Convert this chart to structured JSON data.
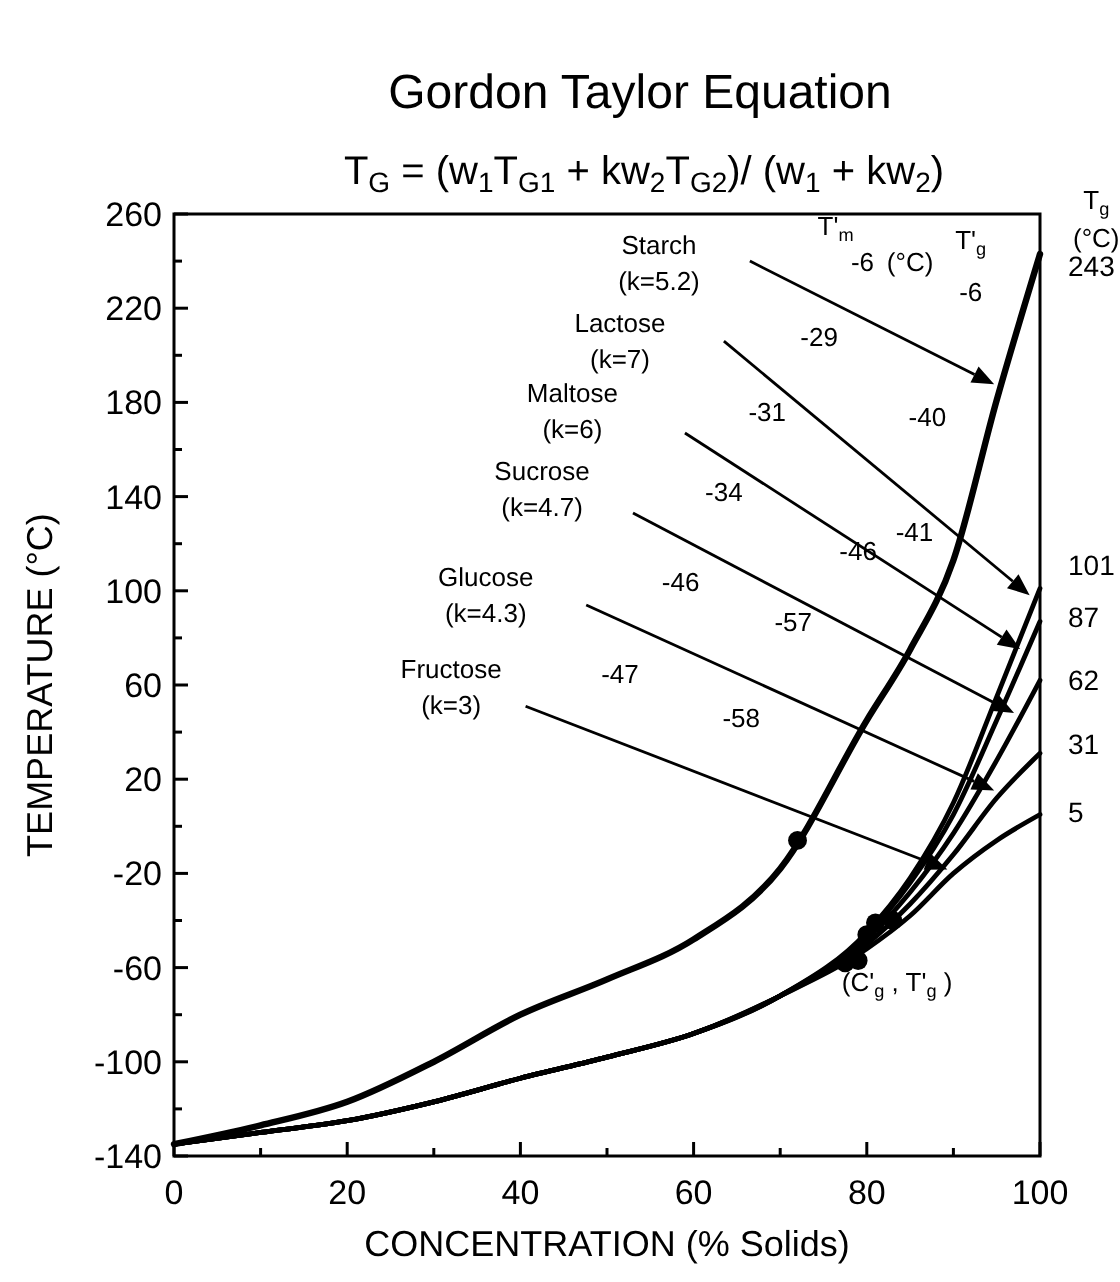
{
  "chart_data": {
    "type": "line",
    "title": "Gordon Taylor Equation",
    "subtitle": "T$_{G}$ = (w$_{1}$T$_{G1}$ + kw$_{2}$T$_{G2}$)/ (w$_{1}$ + kw$_{2}$)",
    "xlabel": "CONCENTRATION (% Solids)",
    "ylabel": "TEMPERATURE (°C)",
    "xlim": [
      0,
      100
    ],
    "ylim": [
      -140,
      260
    ],
    "xticks": [
      0,
      {
        "value": 10,
        "label": null
      },
      20,
      {
        "value": 30,
        "label": null
      },
      40,
      {
        "value": 50,
        "label": null
      },
      60,
      {
        "value": 70,
        "label": null
      },
      80,
      {
        "value": 90,
        "label": null
      },
      100
    ],
    "yticks": [
      -140,
      {
        "value": -120,
        "label": null
      },
      -100,
      {
        "value": -80,
        "label": null
      },
      -60,
      {
        "value": -40,
        "label": null
      },
      -20,
      {
        "value": 0,
        "label": null
      },
      20,
      {
        "value": 40,
        "label": null
      },
      60,
      {
        "value": 80,
        "label": null
      },
      100,
      {
        "value": 120,
        "label": null
      },
      140,
      {
        "value": 160,
        "label": null
      },
      180,
      {
        "value": 200,
        "label": null
      },
      220,
      {
        "value": 240,
        "label": null
      },
      260
    ],
    "grid": false,
    "marker": "none",
    "line_style": "solid",
    "x": [
      0,
      10,
      20,
      30,
      40,
      50,
      60,
      70,
      80,
      85,
      90,
      95,
      100
    ],
    "series": [
      {
        "color": "#000000",
        "values": [
          -135,
          -127,
          -117,
          -100,
          -80,
          -65,
          -48,
          -18,
          45,
          75,
          113,
          181,
          243
        ]
      },
      {
        "color": "#000000",
        "values": [
          -135,
          -130,
          -125,
          -117,
          -107,
          -98,
          -88,
          -72,
          -45,
          -22,
          10,
          55,
          101
        ]
      },
      {
        "color": "#000000",
        "values": [
          -135,
          -130,
          -125,
          -117,
          -107,
          -98,
          -88,
          -72,
          -46,
          -24,
          5,
          45,
          87
        ]
      },
      {
        "color": "#000000",
        "values": [
          -135,
          -130,
          -125,
          -117,
          -107,
          -98,
          -88,
          -72,
          -48,
          -28,
          -3,
          28,
          62
        ]
      },
      {
        "color": "#000000",
        "values": [
          -135,
          -130,
          -125,
          -117,
          -107,
          -98,
          -88,
          -72,
          -50,
          -33,
          -12,
          12,
          31
        ]
      },
      {
        "color": "#000000",
        "values": [
          -135,
          -130,
          -125,
          -117,
          -107,
          -98,
          -88,
          -72,
          -52,
          -38,
          -20,
          -6,
          5
        ]
      },
      {
        "type": "scatter",
        "marker": "circle",
        "color": "#000000",
        "x": [
          72,
          83,
          81,
          80,
          79,
          77.5
        ],
        "values": [
          -6,
          -40,
          -41,
          -46,
          -57,
          -58
        ]
      }
    ],
    "annotations": [
      "T'$_{m}$",
      "(°C)",
      "T'$_{g}$",
      "T$_{g}$",
      "(°C)",
      "-6",
      "-29",
      "-31",
      "-34",
      "-46",
      "-47",
      "-6",
      "-40",
      "-41",
      "-46",
      "-57",
      "-58",
      "(C'$_{g}$ , T'$_{g}$ )",
      "243",
      "101",
      "87",
      "62",
      "31",
      "5",
      "Starch (k=5.2)",
      "Lactose (k=7)",
      "Maltose (k=6)",
      "Sucrose (k=4.7)",
      "Glucose (k=4.3)",
      "Fructose (k=3)"
    ]
  }
}
